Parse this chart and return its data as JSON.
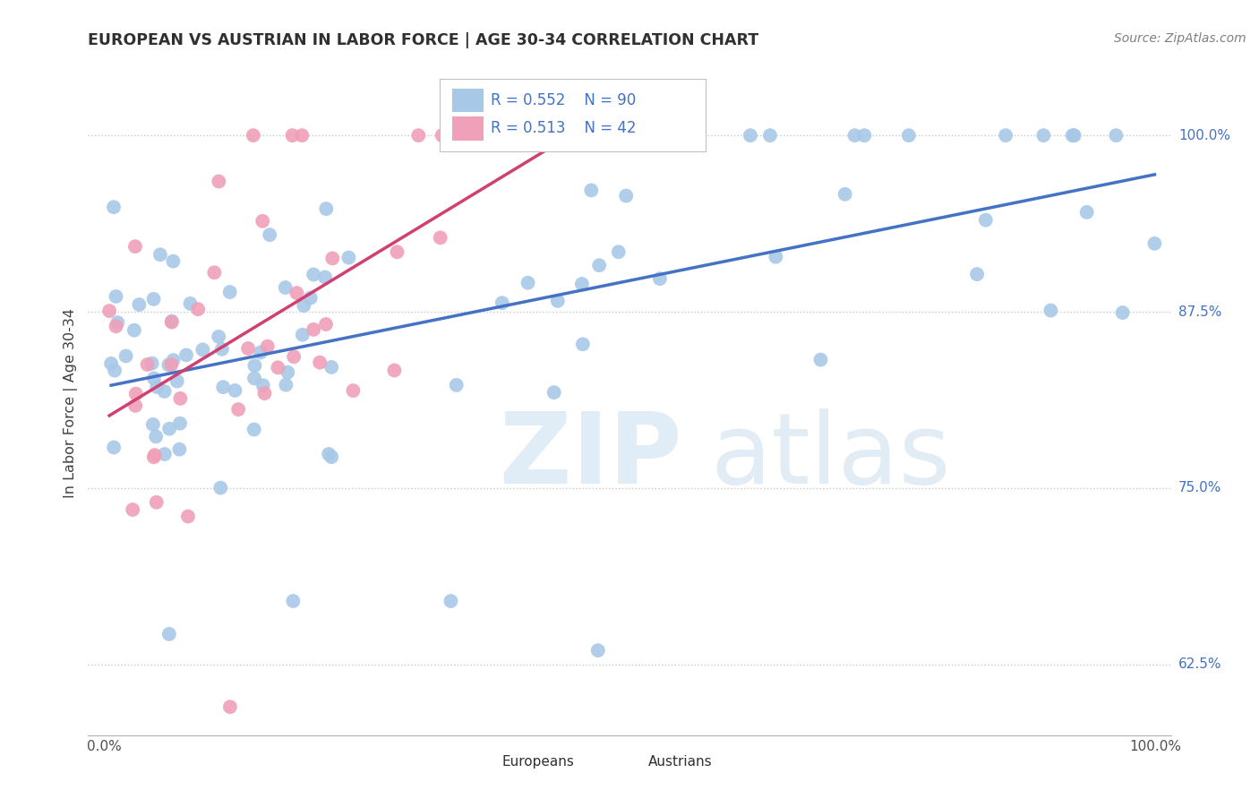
{
  "title": "EUROPEAN VS AUSTRIAN IN LABOR FORCE | AGE 30-34 CORRELATION CHART",
  "source": "Source: ZipAtlas.com",
  "ylabel": "In Labor Force | Age 30-34",
  "r_european": 0.552,
  "n_european": 90,
  "r_austrian": 0.513,
  "n_austrian": 42,
  "european_color": "#a8c8e8",
  "austrian_color": "#f0a0b8",
  "trendline_european_color": "#4472c4",
  "trendline_austrian_color": "#d04070",
  "legend_european": "Europeans",
  "legend_austrian": "Austrians",
  "ytick_values": [
    0.625,
    0.75,
    0.875,
    1.0
  ],
  "ytick_labels": [
    "62.5%",
    "75.0%",
    "87.5%",
    "100.0%"
  ],
  "right_label_color": "#4472c4",
  "grid_color": "#c8c8c8",
  "title_color": "#303030",
  "source_color": "#808080"
}
